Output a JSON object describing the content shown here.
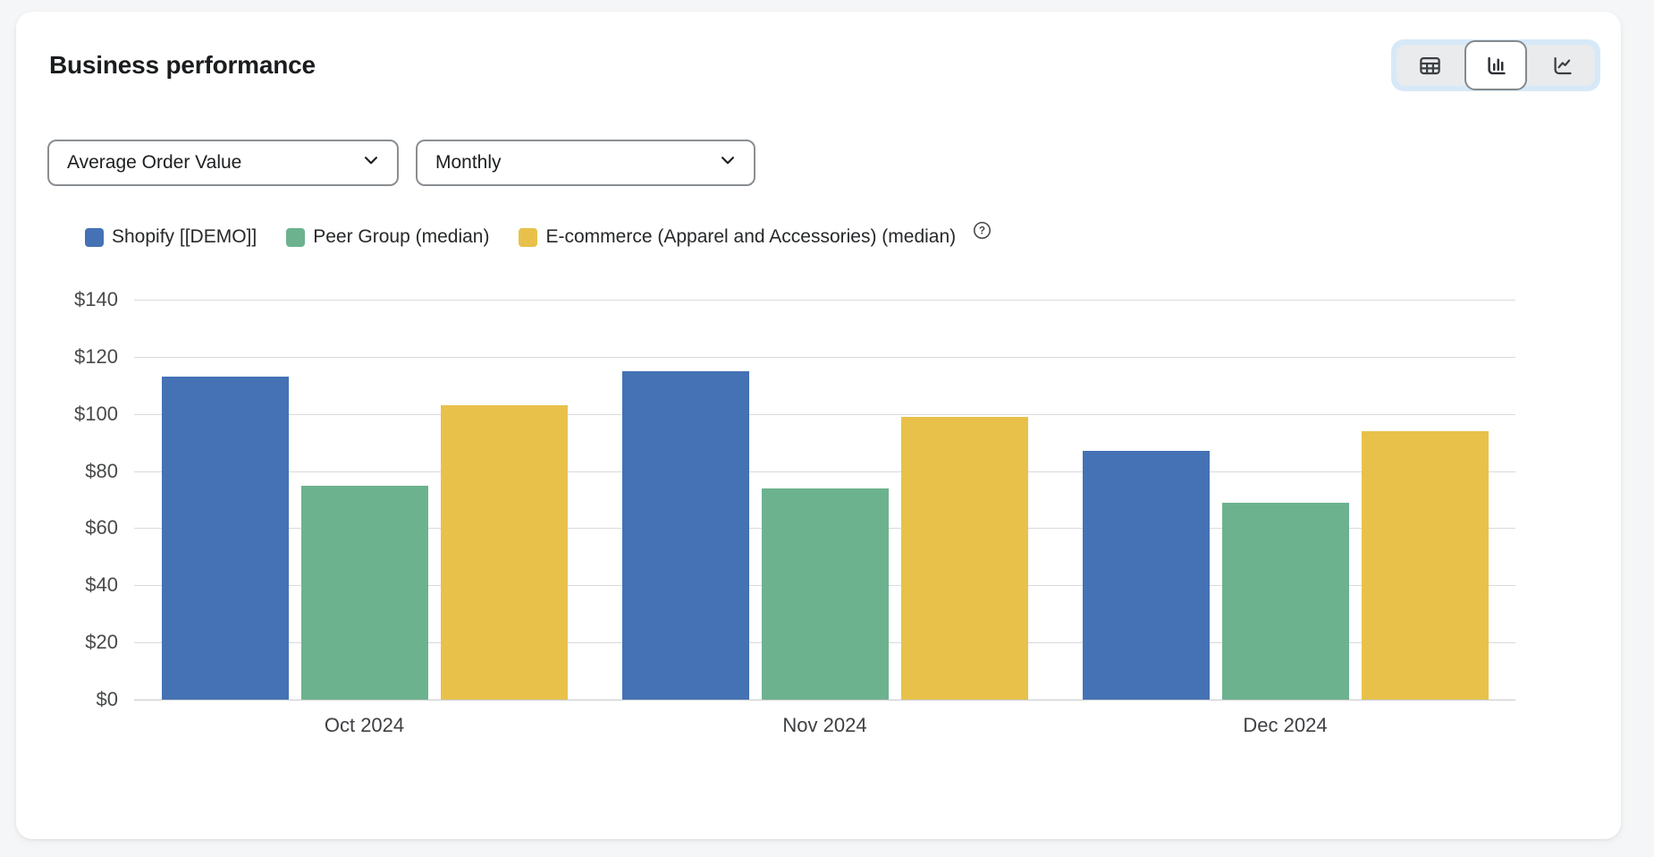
{
  "card": {
    "title": "Business performance"
  },
  "view_toggle": {
    "options": [
      {
        "name": "table-view",
        "icon": "table-icon",
        "active": false
      },
      {
        "name": "bar-chart-view",
        "icon": "bar-chart-icon",
        "active": true
      },
      {
        "name": "line-chart-view",
        "icon": "line-chart-icon",
        "active": false
      }
    ]
  },
  "filters": {
    "metric": {
      "value": "Average Order Value"
    },
    "granularity": {
      "value": "Monthly"
    }
  },
  "legend": {
    "help_icon": "question-mark-in-circle"
  },
  "colors": {
    "series_blue": "#4472b5",
    "series_green": "#6db28e",
    "series_yellow": "#e8c14b",
    "toggle_halo": "#d7e9f8",
    "gridline": "#d8dadc"
  },
  "chart_data": {
    "type": "bar",
    "title": "Business performance",
    "categories": [
      "Oct 2024",
      "Nov 2024",
      "Dec 2024"
    ],
    "series": [
      {
        "name": "Shopify [[DEMO]]",
        "color": "#4472b5",
        "values": [
          113,
          115,
          87
        ]
      },
      {
        "name": "Peer Group (median)",
        "color": "#6db28e",
        "values": [
          75,
          74,
          69
        ]
      },
      {
        "name": "E-commerce (Apparel and Accessories) (median)",
        "color": "#e8c14b",
        "values": [
          103,
          99,
          94
        ]
      }
    ],
    "xlabel": "",
    "ylabel": "",
    "y_max": 140,
    "y_ticks": [
      {
        "label": "$0",
        "value": 0
      },
      {
        "label": "$20",
        "value": 20
      },
      {
        "label": "$40",
        "value": 40
      },
      {
        "label": "$60",
        "value": 60
      },
      {
        "label": "$80",
        "value": 80
      },
      {
        "label": "$100",
        "value": 100
      },
      {
        "label": "$120",
        "value": 120
      },
      {
        "label": "$140",
        "value": 140
      }
    ],
    "grid": true,
    "legend_position": "top"
  }
}
